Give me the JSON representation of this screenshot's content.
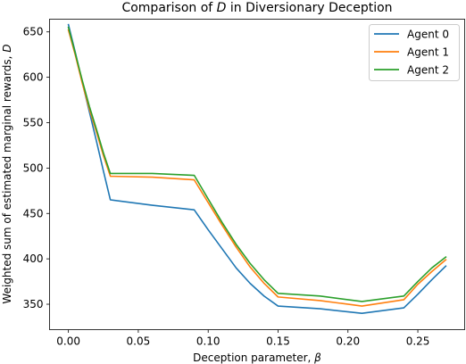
{
  "chart_data": {
    "type": "line",
    "title": "Comparison of D in Diversionary Deception",
    "title_prefix": "Comparison of ",
    "title_symbol": "D",
    "title_suffix": " in Diversionary Deception",
    "xlabel": "Deception parameter, β",
    "xlabel_prefix": "Deception parameter, ",
    "xlabel_symbol": "β",
    "ylabel": "Weighted sum of estimated marginal rewards, D",
    "ylabel_prefix": "Weighted sum of estimated marginal rewards, ",
    "ylabel_symbol": "D",
    "xlim": [
      -0.0135,
      0.2835
    ],
    "ylim": [
      322,
      664
    ],
    "xticks": [
      0.0,
      0.05,
      0.1,
      0.15,
      0.2,
      0.25
    ],
    "xtick_labels": [
      "0.00",
      "0.05",
      "0.10",
      "0.15",
      "0.20",
      "0.25"
    ],
    "yticks": [
      350,
      400,
      450,
      500,
      550,
      600,
      650
    ],
    "ytick_labels": [
      "350",
      "400",
      "450",
      "500",
      "550",
      "600",
      "650"
    ],
    "grid": false,
    "legend_position": "top-right",
    "x": [
      0.0,
      0.005,
      0.01,
      0.015,
      0.02,
      0.025,
      0.03,
      0.06,
      0.09,
      0.1,
      0.11,
      0.12,
      0.13,
      0.14,
      0.15,
      0.18,
      0.21,
      0.24,
      0.25,
      0.26,
      0.27
    ],
    "series": [
      {
        "name": "Agent 0",
        "color": "#1f77b4",
        "values": [
          658,
          627,
          594,
          562,
          530,
          497,
          465,
          459,
          454,
          432,
          411,
          390,
          373,
          359,
          348,
          345,
          340,
          346,
          361,
          377,
          392
        ]
      },
      {
        "name": "Agent 1",
        "color": "#ff7f0e",
        "values": [
          652,
          624,
          593,
          565,
          540,
          514,
          491,
          490,
          487,
          462,
          437,
          413,
          391,
          373,
          358,
          354,
          348,
          355,
          372,
          386,
          399
        ]
      },
      {
        "name": "Agent 2",
        "color": "#2ca02c",
        "values": [
          655,
          626,
          596,
          568,
          543,
          517,
          494,
          494,
          492,
          466,
          440,
          416,
          395,
          377,
          362,
          359,
          353,
          359,
          375,
          390,
          402
        ]
      }
    ]
  }
}
